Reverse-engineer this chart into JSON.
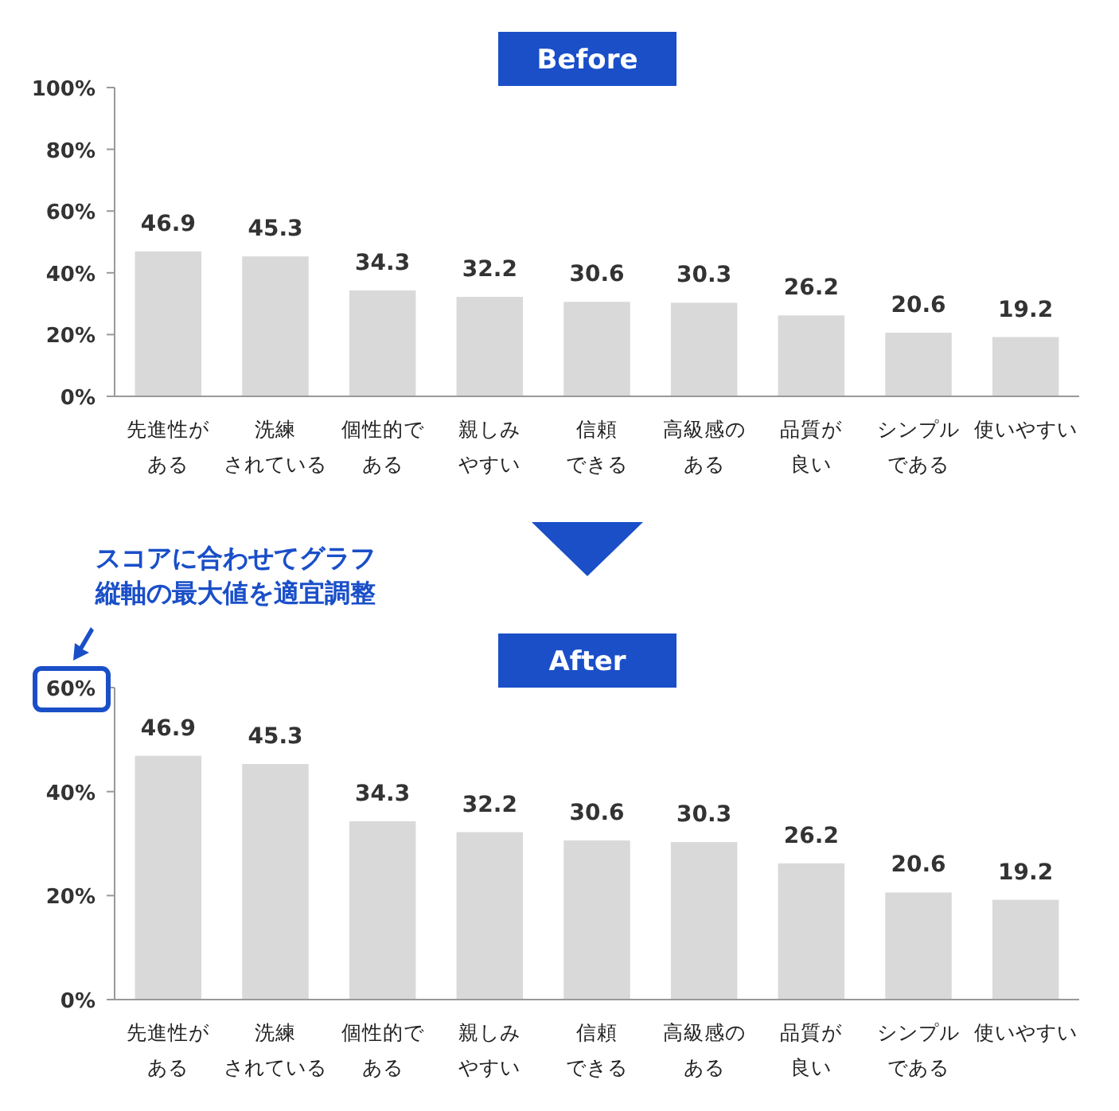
{
  "chart_data": [
    {
      "type": "bar",
      "title": "Before",
      "categories": [
        "先進性がある",
        "洗練されている",
        "個性的である",
        "親しみやすい",
        "信頼できる",
        "高級感のある",
        "品質が良い",
        "シンプルである",
        "使いやすい"
      ],
      "values": [
        46.9,
        45.3,
        34.3,
        32.2,
        30.6,
        30.3,
        26.2,
        20.6,
        19.2
      ],
      "color": "#d9d9d9",
      "ylim": [
        0,
        100
      ],
      "yticks": [
        {
          "value": 0,
          "label": "0%"
        },
        {
          "value": 20,
          "label": "20%"
        },
        {
          "value": 40,
          "label": "40%"
        },
        {
          "value": 60,
          "label": "60%"
        },
        {
          "value": 80,
          "label": "80%"
        },
        {
          "value": 100,
          "label": "100%"
        }
      ],
      "data_labels": true
    },
    {
      "type": "bar",
      "title": "After",
      "categories": [
        "先進性がある",
        "洗練されている",
        "個性的である",
        "親しみやすい",
        "信頼できる",
        "高級感のある",
        "品質が良い",
        "シンプルである",
        "使いやすい"
      ],
      "values": [
        46.9,
        45.3,
        34.3,
        32.2,
        30.6,
        30.3,
        26.2,
        20.6,
        19.2
      ],
      "color": "#d9d9d9",
      "ylim": [
        0,
        60
      ],
      "yticks": [
        {
          "value": 0,
          "label": "0%"
        },
        {
          "value": 20,
          "label": "20%"
        },
        {
          "value": 40,
          "label": "40%"
        },
        {
          "value": 60,
          "label": "60%"
        }
      ],
      "data_labels": true,
      "annotations": [
        "スコアに合わせてグラフ縦軸の最大値を適宜調整"
      ]
    }
  ]
}
